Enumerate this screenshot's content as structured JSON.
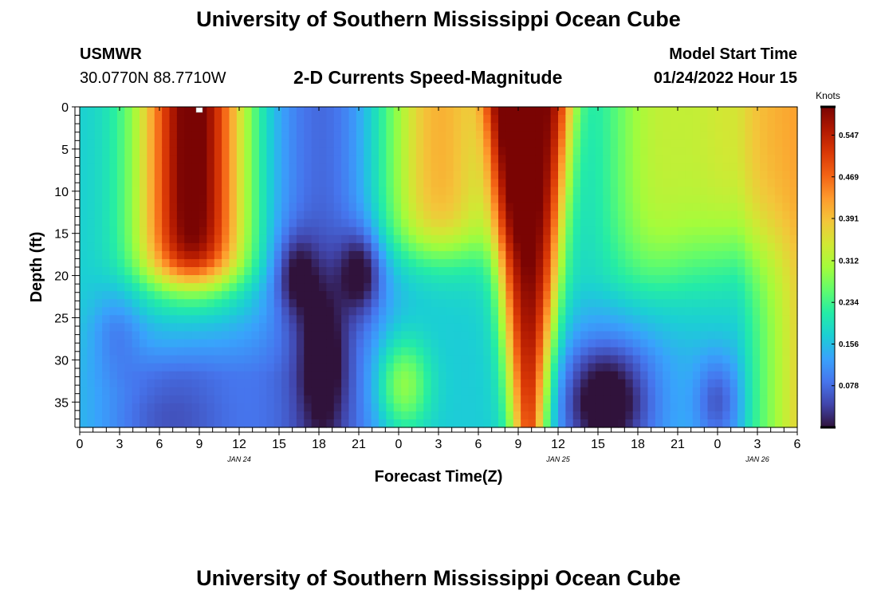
{
  "header": {
    "title": "University of Southern Mississippi Ocean Cube",
    "station": "USMWR",
    "coords": "30.0770N  88.7710W",
    "product": "2-D Currents Speed-Magnitude",
    "model_start_label": "Model Start Time",
    "model_start_value": "01/24/2022 Hour 15",
    "title_repeat": "University of Southern Mississippi Ocean Cube"
  },
  "chart_data": {
    "type": "heatmap",
    "title": "2-D Currents Speed-Magnitude",
    "xlabel": "Forecast Time(Z)",
    "ylabel": "Depth (ft)",
    "x_start_hour": 0,
    "x_end_hour": 54,
    "x_tick_step_hours": 3,
    "x_tick_labels": [
      "0",
      "3",
      "6",
      "9",
      "12",
      "15",
      "18",
      "21",
      "0",
      "3",
      "6",
      "9",
      "12",
      "15",
      "18",
      "21",
      "0",
      "3",
      "6"
    ],
    "date_labels": [
      {
        "label": "JAN 24",
        "hour": 12
      },
      {
        "label": "JAN 25",
        "hour": 36
      },
      {
        "label": "JAN 26",
        "hour": 51
      }
    ],
    "y_range_ft": [
      0,
      38
    ],
    "y_ticks": [
      0,
      5,
      10,
      15,
      20,
      25,
      30,
      35
    ],
    "colorbar": {
      "unit_label": "Knots",
      "min": 0.0,
      "max": 0.6,
      "ticks": [
        "0.547",
        "0.469",
        "0.391",
        "0.312",
        "0.234",
        "0.156",
        "0.078"
      ],
      "colors": [
        "#30123b",
        "#4145ab",
        "#4675ed",
        "#39a2fc",
        "#1bcfd4",
        "#24eca6",
        "#61fc6c",
        "#a4fc3b",
        "#d1e834",
        "#f3c63a",
        "#fe9b2d",
        "#f36315",
        "#d93806",
        "#b11901",
        "#7a0403"
      ]
    },
    "notes": "Current speed magnitude by depth vs forecast hour. Peaks ~0.6 kn near hours 8 (upper layer) and 33-34 (full column); minima ~0.02 kn near hour 39, depth 35 ft.",
    "speed_features": [
      {
        "hour": 8.5,
        "depth_ft": 10,
        "speed_kn": 0.6
      },
      {
        "hour": 27,
        "depth_ft": 6,
        "speed_kn": 0.41
      },
      {
        "hour": 33.5,
        "depth_ft": 12,
        "speed_kn": 0.6
      },
      {
        "hour": 51,
        "depth_ft": 5,
        "speed_kn": 0.33
      },
      {
        "hour": 54,
        "depth_ft": 15,
        "speed_kn": 0.45
      },
      {
        "hour": 16,
        "depth_ft": 20,
        "speed_kn": 0.04
      },
      {
        "hour": 21,
        "depth_ft": 20,
        "speed_kn": 0.03
      },
      {
        "hour": 18,
        "depth_ft": 30,
        "speed_kn": 0.04
      },
      {
        "hour": 39.5,
        "depth_ft": 35,
        "speed_kn": 0.01
      },
      {
        "hour": 48,
        "depth_ft": 35,
        "speed_kn": 0.04
      },
      {
        "hour": 24,
        "depth_ft": 33,
        "speed_kn": 0.3
      }
    ]
  }
}
